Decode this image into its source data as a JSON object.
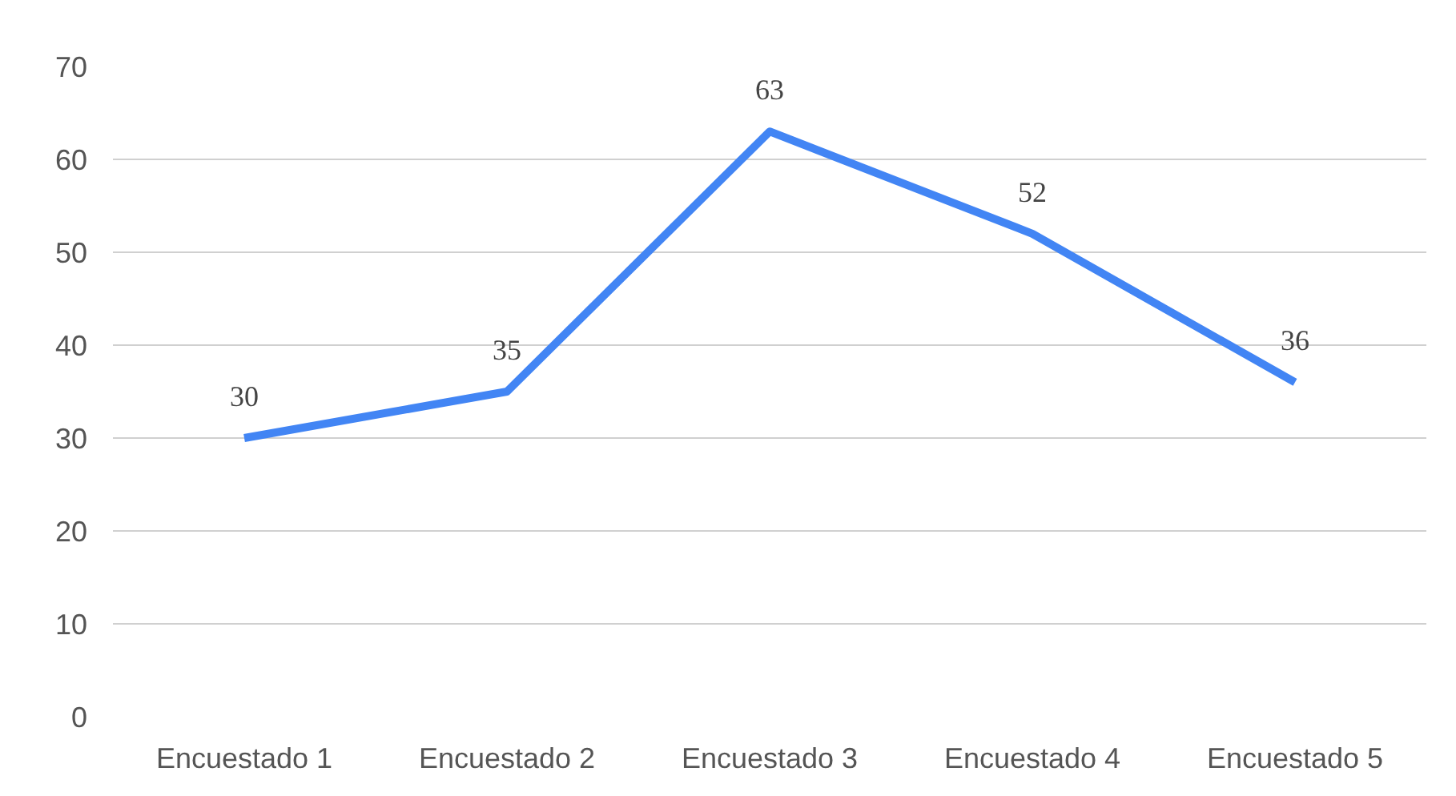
{
  "chart_data": {
    "type": "line",
    "categories": [
      "Encuestado 1",
      "Encuestado 2",
      "Encuestado 3",
      "Encuestado 4",
      "Encuestado 5"
    ],
    "values": [
      30,
      35,
      63,
      52,
      36
    ],
    "color": "#4285f4",
    "ylim": [
      0,
      70
    ],
    "yticks": [
      0,
      10,
      20,
      30,
      40,
      50,
      60,
      70
    ],
    "grid": "y",
    "data_labels": true,
    "marker": "none",
    "line_style": "solid"
  }
}
